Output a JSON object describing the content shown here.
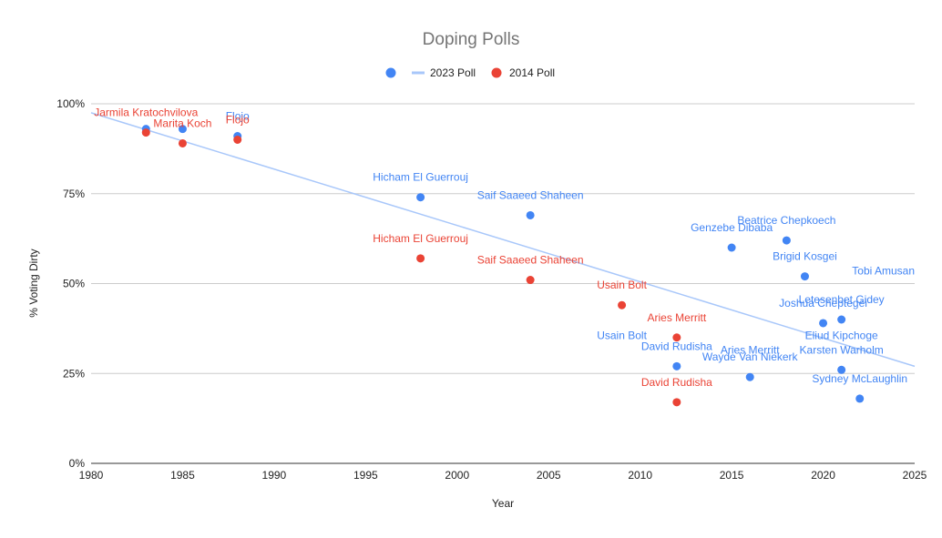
{
  "chart_data": {
    "type": "scatter",
    "title": "Doping Polls",
    "xlabel": "Year",
    "ylabel": "% Voting Dirty",
    "xlim": [
      1980,
      2025
    ],
    "ylim": [
      0,
      1
    ],
    "x_ticks": [
      "1980",
      "1985",
      "1990",
      "1995",
      "2000",
      "2005",
      "2010",
      "2015",
      "2020",
      "2025"
    ],
    "y_ticks": [
      "0%",
      "25%",
      "50%",
      "75%",
      "100%"
    ],
    "grid": true,
    "legend_position": "top",
    "legend": [
      {
        "label": "",
        "marker": "dot",
        "color": "#4285f4"
      },
      {
        "label": "2023 Poll",
        "marker": "line",
        "color": "#a8c7fa"
      },
      {
        "label": "2014 Poll",
        "marker": "dot",
        "color": "#ea4335"
      }
    ],
    "series": [
      {
        "name": "2023 Poll",
        "color": "#4285f4",
        "points": [
          {
            "x": 1983,
            "y": 0.93,
            "label": ""
          },
          {
            "x": 1985,
            "y": 0.93,
            "label": ""
          },
          {
            "x": 1988,
            "y": 0.91,
            "label": "Flojo"
          },
          {
            "x": 1998,
            "y": 0.74,
            "label": "Hicham El Guerrouj"
          },
          {
            "x": 2004,
            "y": 0.69,
            "label": "Saif Saaeed Shaheen"
          },
          {
            "x": 2015,
            "y": 0.6,
            "label": "Genzebe Dibaba"
          },
          {
            "x": 2018,
            "y": 0.62,
            "label": "Beatrice Chepkoech"
          },
          {
            "x": 2019,
            "y": 0.52,
            "label": "Brigid Kosgei"
          },
          {
            "x": 2020,
            "y": 0.39,
            "label": "Joshua Cheptegei"
          },
          {
            "x": 2021,
            "y": 0.4,
            "label": "Letesenbet Gidey"
          },
          {
            "x": 2021,
            "y": 0.26,
            "label": "Karsten Warholm"
          },
          {
            "x": 2022,
            "y": 0.18,
            "label": "Sydney McLaughlin"
          },
          {
            "x": 2012,
            "y": 0.27,
            "label": "David Rudisha"
          },
          {
            "x": 2016,
            "y": 0.24,
            "label": "Wayde Van Niekerk"
          }
        ],
        "extra_labels": [
          {
            "x": 2025,
            "y": 0.52,
            "text": "Tobi Amusan"
          },
          {
            "x": 2021,
            "y": 0.34,
            "text": "Eliud Kipchoge"
          },
          {
            "x": 2009,
            "y": 0.34,
            "text": "Usain Bolt"
          },
          {
            "x": 2016,
            "y": 0.3,
            "text": "Aries Merritt"
          }
        ]
      },
      {
        "name": "2014 Poll",
        "color": "#ea4335",
        "points": [
          {
            "x": 1983,
            "y": 0.92,
            "label": "Jarmila Kratochvilova"
          },
          {
            "x": 1985,
            "y": 0.89,
            "label": "Marita Koch"
          },
          {
            "x": 1988,
            "y": 0.9,
            "label": "Flojo"
          },
          {
            "x": 1998,
            "y": 0.57,
            "label": "Hicham El Guerrouj"
          },
          {
            "x": 2004,
            "y": 0.51,
            "label": "Saif Saaeed Shaheen"
          },
          {
            "x": 2009,
            "y": 0.44,
            "label": "Usain Bolt"
          },
          {
            "x": 2012,
            "y": 0.35,
            "label": "Aries Merritt"
          },
          {
            "x": 2012,
            "y": 0.17,
            "label": "David Rudisha"
          }
        ]
      }
    ],
    "trendline": {
      "color": "#a8c7fa",
      "from": {
        "x": 1980,
        "y": 0.975
      },
      "to": {
        "x": 2025,
        "y": 0.27
      }
    }
  }
}
